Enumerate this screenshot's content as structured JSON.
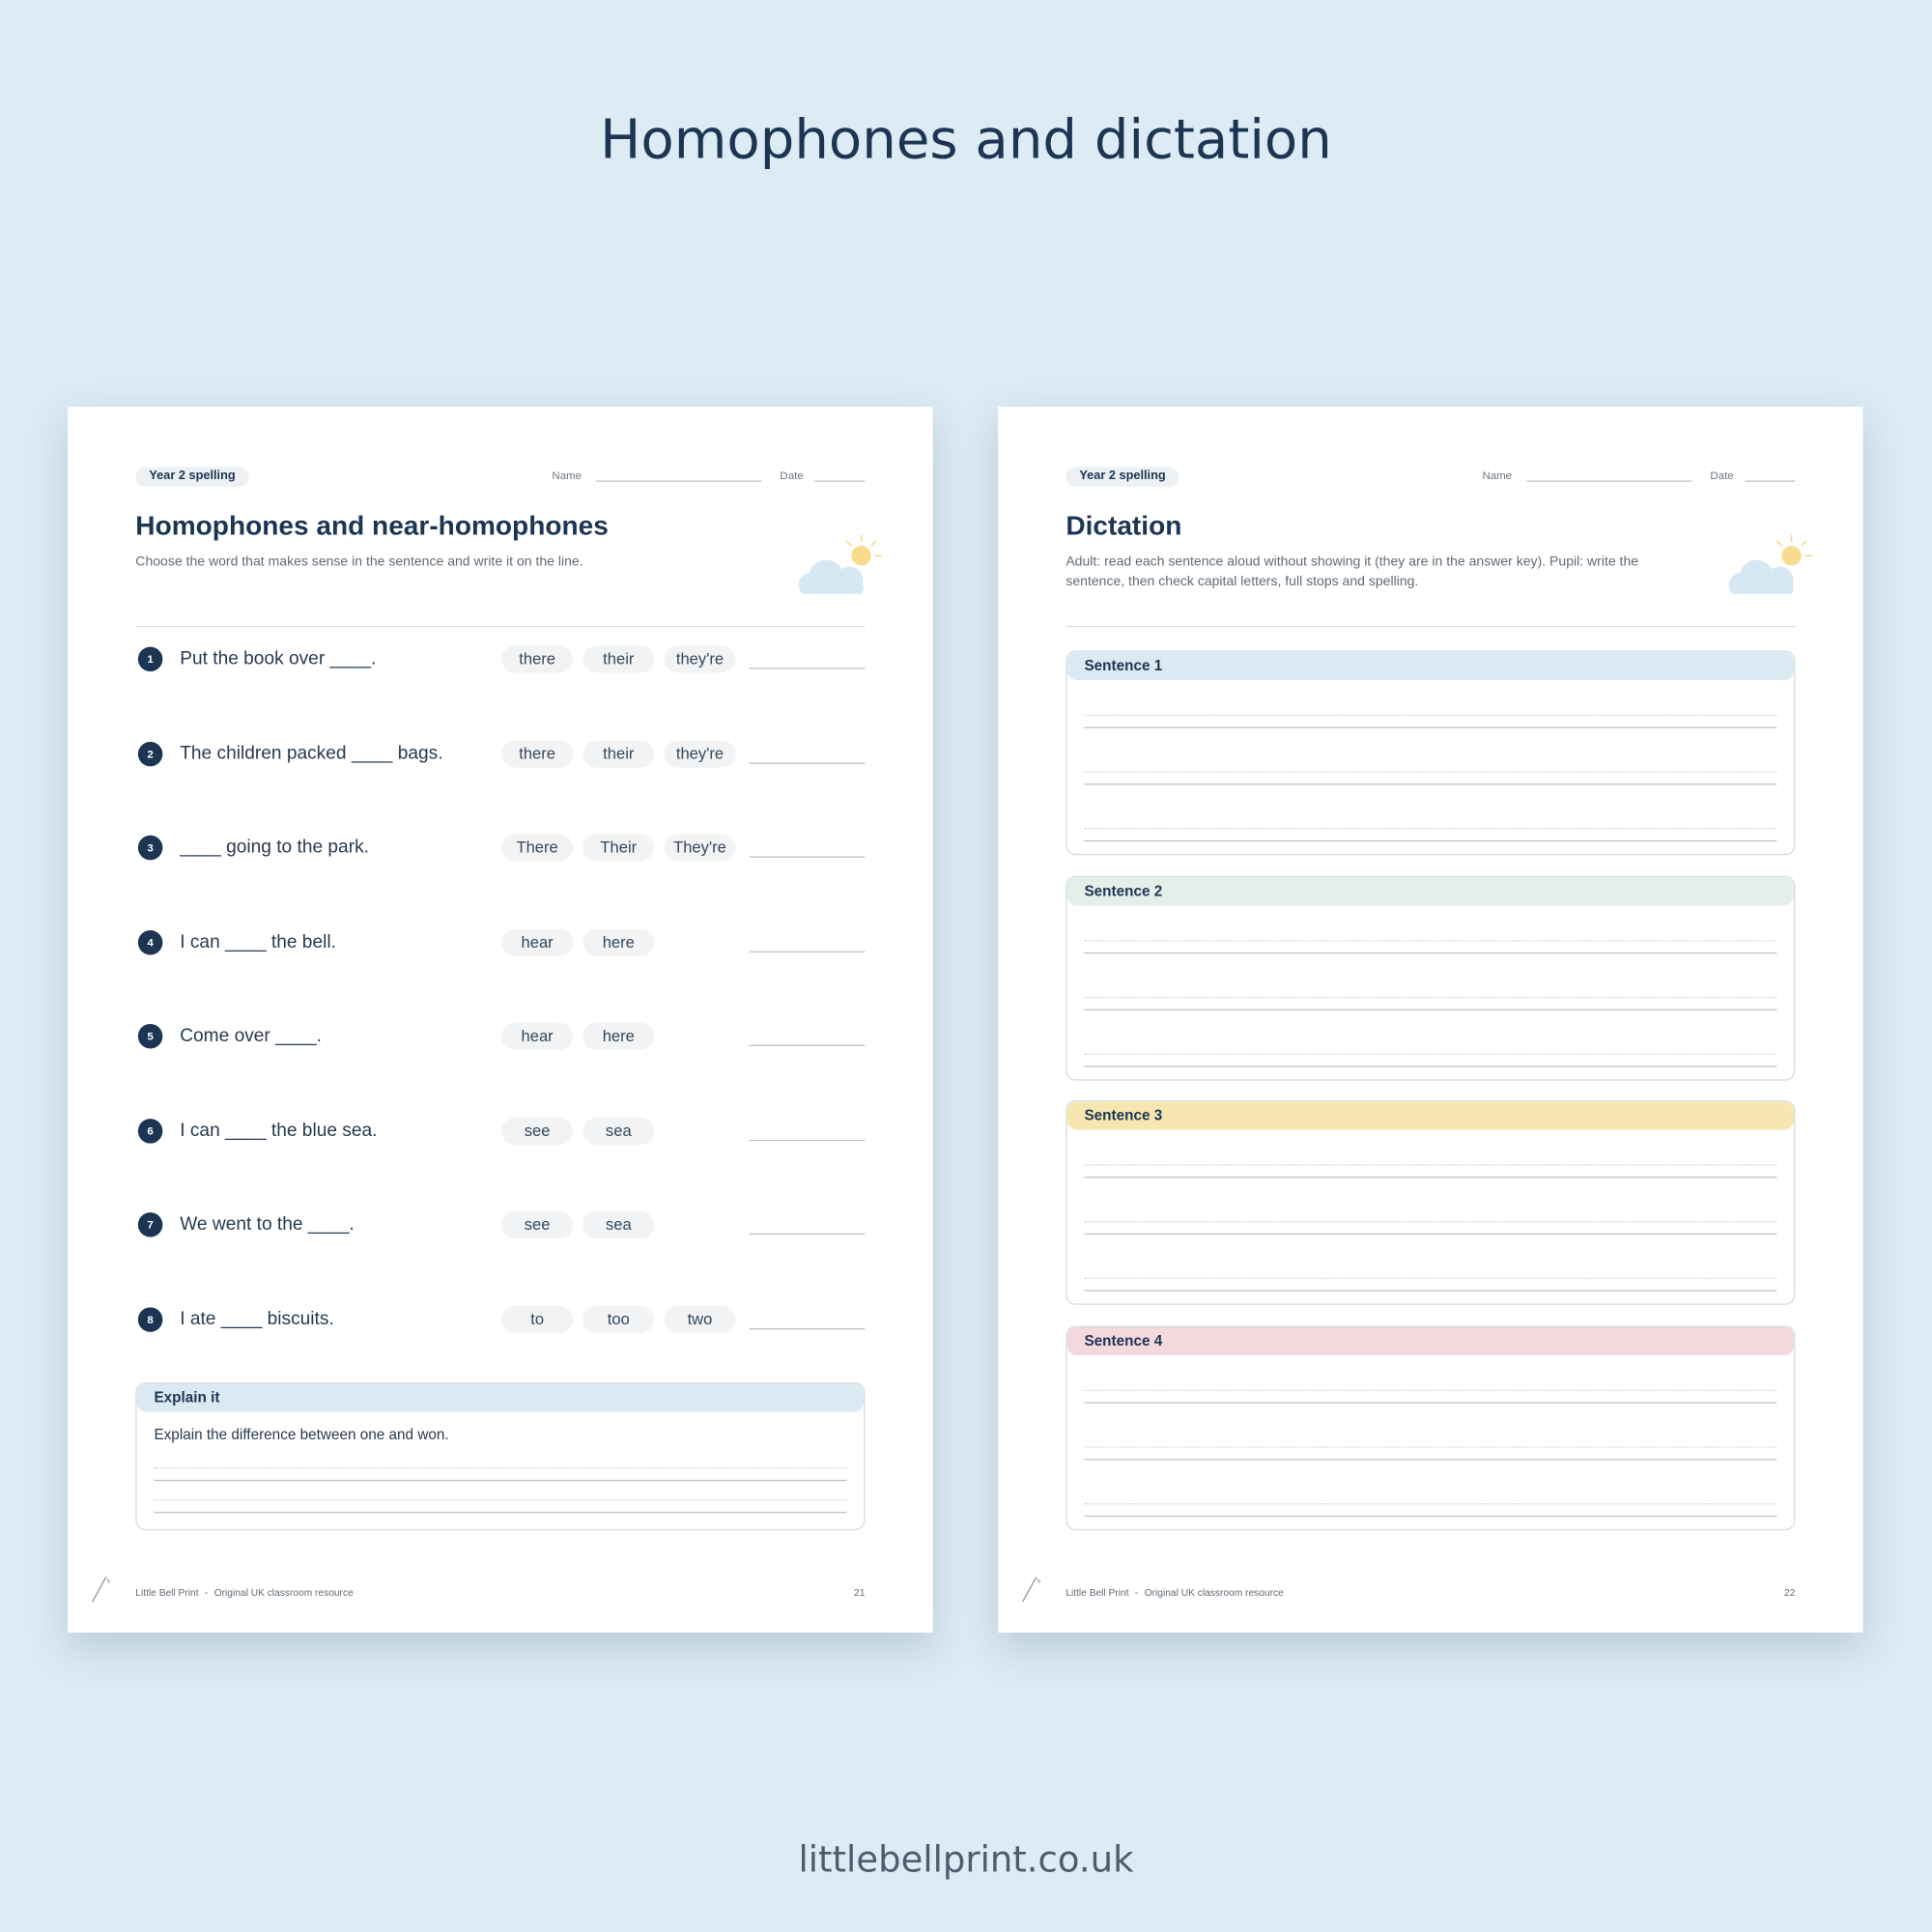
{
  "header": {
    "title": "Homophones and dictation"
  },
  "pages": [
    {
      "tag": "Year 2 spelling",
      "name_label": "Name",
      "date_label": "Date",
      "title": "Homophones and near-homophones",
      "instructions": "Choose the word that makes sense in the sentence and write it on the line.",
      "questions": [
        {
          "number": "1",
          "sentence": "Put the book over ____.",
          "options": [
            "there",
            "their",
            "they're"
          ]
        },
        {
          "number": "2",
          "sentence": "The children packed ____ bags.",
          "options": [
            "there",
            "their",
            "they're"
          ]
        },
        {
          "number": "3",
          "sentence": "____ going to the park.",
          "options": [
            "There",
            "Their",
            "They're"
          ]
        },
        {
          "number": "4",
          "sentence": "I can ____ the bell.",
          "options": [
            "hear",
            "here"
          ]
        },
        {
          "number": "5",
          "sentence": "Come over ____.",
          "options": [
            "hear",
            "here"
          ]
        },
        {
          "number": "6",
          "sentence": "I can ____ the blue sea.",
          "options": [
            "see",
            "sea"
          ]
        },
        {
          "number": "7",
          "sentence": "We went to the ____.",
          "options": [
            "see",
            "sea"
          ]
        },
        {
          "number": "8",
          "sentence": "I ate ____ biscuits.",
          "options": [
            "to",
            "too",
            "two"
          ]
        }
      ],
      "explain": {
        "heading": "Explain it",
        "prompt": "Explain the difference between one and won."
      },
      "footer": {
        "brand": "Little Bell Print",
        "separator": "-",
        "tagline": "Original UK classroom resource",
        "page": "21"
      }
    },
    {
      "tag": "Year 2 spelling",
      "name_label": "Name",
      "date_label": "Date",
      "title": "Dictation",
      "instructions": "Adult: read each sentence aloud without showing it (they are in the answer key). Pupil: write the sentence, then check capital letters, full stops and spelling.",
      "sentences": [
        "Sentence 1",
        "Sentence 2",
        "Sentence 3",
        "Sentence 4"
      ],
      "footer": {
        "brand": "Little Bell Print",
        "separator": "-",
        "tagline": "Original UK classroom resource",
        "page": "22"
      }
    }
  ],
  "footer": {
    "url": "littlebellprint.co.uk"
  }
}
